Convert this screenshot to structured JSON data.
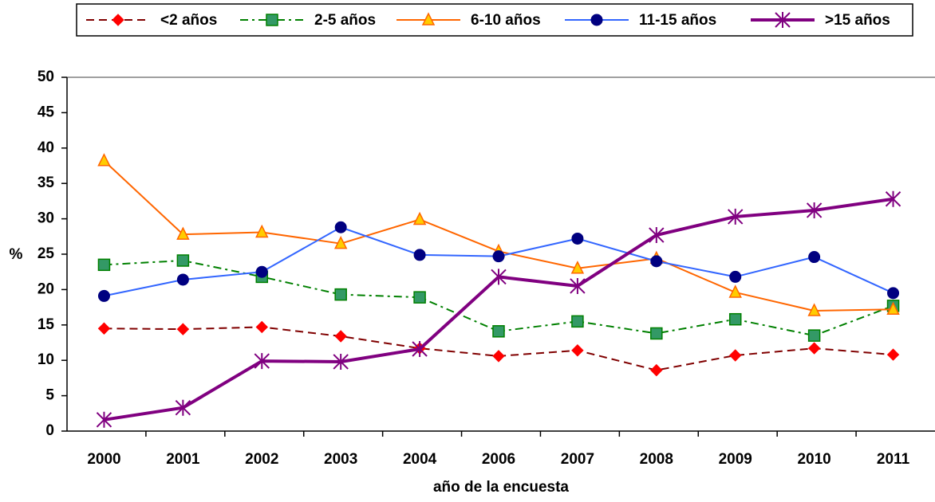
{
  "chart_data": {
    "type": "line",
    "xlabel": "año de la encuesta",
    "ylabel": "%",
    "categories": [
      "2000",
      "2001",
      "2002",
      "2003",
      "2004",
      "2006",
      "2007",
      "2008",
      "2009",
      "2010",
      "2011"
    ],
    "series": [
      {
        "name": "<2 años",
        "color": "#800000",
        "marker_color": "#ff0000",
        "marker": "diamond",
        "linestyle": "dashed",
        "values": [
          14.5,
          14.4,
          14.7,
          13.4,
          11.7,
          10.6,
          11.4,
          8.6,
          10.7,
          11.7,
          10.8
        ]
      },
      {
        "name": "2-5 años",
        "color": "#008000",
        "marker_color": "#339966",
        "marker": "square",
        "linestyle": "dashdot",
        "values": [
          23.5,
          24.1,
          21.8,
          19.3,
          18.9,
          14.1,
          15.5,
          13.8,
          15.8,
          13.5,
          17.7
        ]
      },
      {
        "name": "6-10 años",
        "color": "#ff6600",
        "marker_color": "#ffcc00",
        "marker": "triangle",
        "linestyle": "solid",
        "values": [
          38.2,
          27.8,
          28.1,
          26.5,
          29.9,
          25.4,
          23.0,
          24.4,
          19.6,
          17.0,
          17.2
        ]
      },
      {
        "name": "11-15 años",
        "color": "#3366ff",
        "marker_color": "#000080",
        "marker": "circle",
        "linestyle": "solid",
        "values": [
          19.1,
          21.4,
          22.5,
          28.8,
          24.9,
          24.7,
          27.2,
          24.0,
          21.8,
          24.6,
          19.5
        ]
      },
      {
        "name": ">15 años",
        "color": "#800080",
        "marker_color": "#800080",
        "marker": "asterisk",
        "linestyle": "thick",
        "values": [
          1.6,
          3.3,
          9.9,
          9.8,
          11.6,
          21.8,
          20.5,
          27.7,
          30.3,
          31.2,
          32.8
        ]
      }
    ],
    "ylim": [
      0,
      50
    ],
    "yticks": [
      0,
      5,
      10,
      15,
      20,
      25,
      30,
      35,
      40,
      45,
      50
    ],
    "grid": false,
    "legend": "top"
  }
}
